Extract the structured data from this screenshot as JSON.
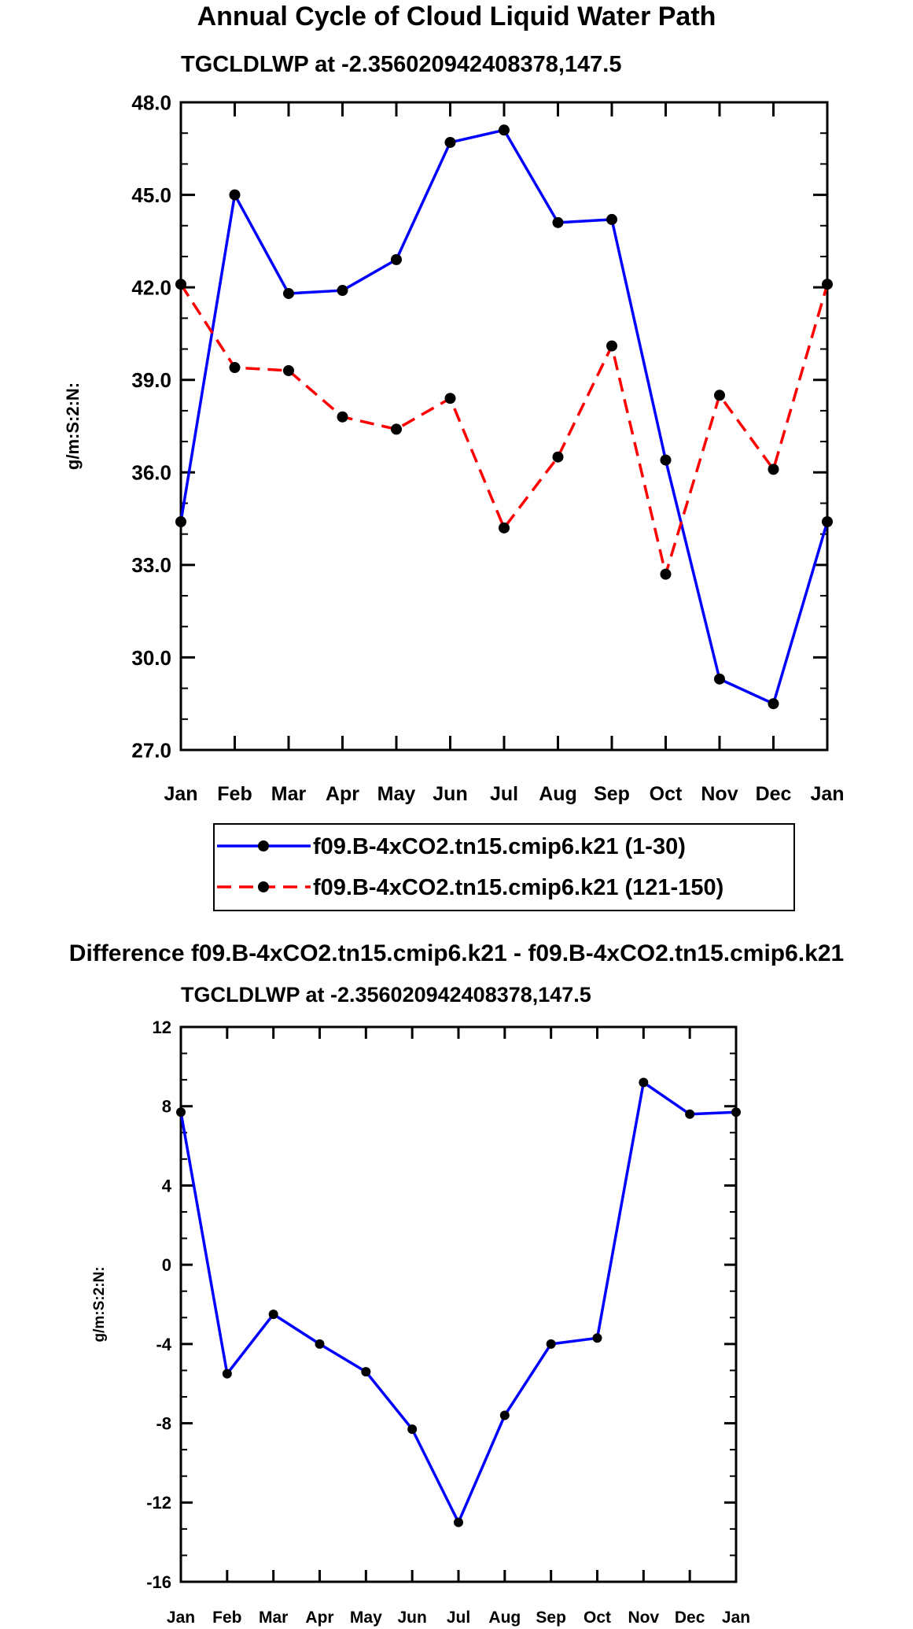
{
  "chart_data": [
    {
      "type": "line",
      "title": "Annual Cycle of Cloud Liquid Water Path",
      "subtitle": "TGCLDLWP at -2.356020942408378,147.5",
      "xlabel": "",
      "ylabel": "g/m:S:2:N:",
      "categories": [
        "Jan",
        "Feb",
        "Mar",
        "Apr",
        "May",
        "Jun",
        "Jul",
        "Aug",
        "Sep",
        "Oct",
        "Nov",
        "Dec",
        "Jan"
      ],
      "ylim": [
        27,
        48
      ],
      "yticks": [
        "27.0",
        "30.0",
        "33.0",
        "36.0",
        "39.0",
        "42.0",
        "45.0",
        "48.0"
      ],
      "series": [
        {
          "name": "f09.B-4xCO2.tn15.cmip6.k21 (1-30)",
          "color": "#0000ff",
          "dash": "solid",
          "values": [
            34.4,
            45.0,
            41.8,
            41.9,
            42.9,
            46.7,
            47.1,
            44.1,
            44.2,
            36.4,
            29.3,
            28.5,
            34.4
          ]
        },
        {
          "name": "f09.B-4xCO2.tn15.cmip6.k21 (121-150)",
          "color": "#ff0000",
          "dash": "dashed",
          "values": [
            42.1,
            39.4,
            39.3,
            37.8,
            37.4,
            38.4,
            34.2,
            36.5,
            40.1,
            32.7,
            38.5,
            36.1,
            42.1
          ]
        }
      ],
      "legend_position": "bottom"
    },
    {
      "type": "line",
      "title": "Difference f09.B-4xCO2.tn15.cmip6.k21 - f09.B-4xCO2.tn15.cmip6.k21",
      "subtitle": "TGCLDLWP at -2.356020942408378,147.5",
      "xlabel": "",
      "ylabel": "g/m:S:2:N:",
      "categories": [
        "Jan",
        "Feb",
        "Mar",
        "Apr",
        "May",
        "Jun",
        "Jul",
        "Aug",
        "Sep",
        "Oct",
        "Nov",
        "Dec",
        "Jan"
      ],
      "ylim": [
        -16,
        12
      ],
      "yticks": [
        "-16",
        "-12",
        "-8",
        "-4",
        "0",
        "4",
        "8",
        "12"
      ],
      "series": [
        {
          "name": "difference",
          "color": "#0000ff",
          "dash": "solid",
          "values": [
            7.7,
            -5.5,
            -2.5,
            -4.0,
            -5.4,
            -8.3,
            -13.0,
            -7.6,
            -4.0,
            -3.7,
            9.2,
            7.6,
            7.7
          ]
        }
      ]
    }
  ]
}
